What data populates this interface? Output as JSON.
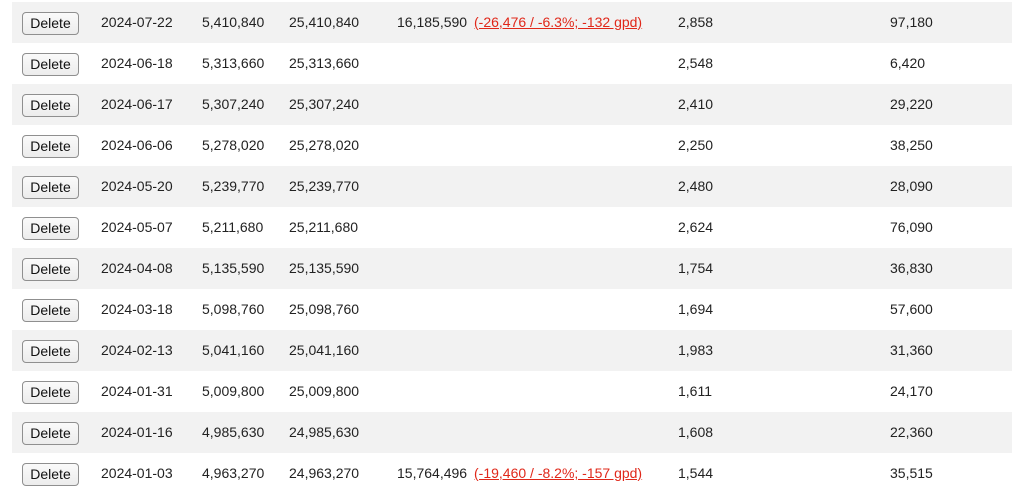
{
  "table": {
    "delete_label": "Delete",
    "rows": [
      {
        "date": "2024-07-22",
        "v1": "5,410,840",
        "v2": "25,410,840",
        "v3": "16,185,590",
        "delta": "(-26,476 / -6.3%; -132 gpd)",
        "v4": "2,858",
        "v5": "97,180"
      },
      {
        "date": "2024-06-18",
        "v1": "5,313,660",
        "v2": "25,313,660",
        "v3": "",
        "delta": "",
        "v4": "2,548",
        "v5": "6,420"
      },
      {
        "date": "2024-06-17",
        "v1": "5,307,240",
        "v2": "25,307,240",
        "v3": "",
        "delta": "",
        "v4": "2,410",
        "v5": "29,220"
      },
      {
        "date": "2024-06-06",
        "v1": "5,278,020",
        "v2": "25,278,020",
        "v3": "",
        "delta": "",
        "v4": "2,250",
        "v5": "38,250"
      },
      {
        "date": "2024-05-20",
        "v1": "5,239,770",
        "v2": "25,239,770",
        "v3": "",
        "delta": "",
        "v4": "2,480",
        "v5": "28,090"
      },
      {
        "date": "2024-05-07",
        "v1": "5,211,680",
        "v2": "25,211,680",
        "v3": "",
        "delta": "",
        "v4": "2,624",
        "v5": "76,090"
      },
      {
        "date": "2024-04-08",
        "v1": "5,135,590",
        "v2": "25,135,590",
        "v3": "",
        "delta": "",
        "v4": "1,754",
        "v5": "36,830"
      },
      {
        "date": "2024-03-18",
        "v1": "5,098,760",
        "v2": "25,098,760",
        "v3": "",
        "delta": "",
        "v4": "1,694",
        "v5": "57,600"
      },
      {
        "date": "2024-02-13",
        "v1": "5,041,160",
        "v2": "25,041,160",
        "v3": "",
        "delta": "",
        "v4": "1,983",
        "v5": "31,360"
      },
      {
        "date": "2024-01-31",
        "v1": "5,009,800",
        "v2": "25,009,800",
        "v3": "",
        "delta": "",
        "v4": "1,611",
        "v5": "24,170"
      },
      {
        "date": "2024-01-16",
        "v1": "4,985,630",
        "v2": "24,985,630",
        "v3": "",
        "delta": "",
        "v4": "1,608",
        "v5": "22,360"
      },
      {
        "date": "2024-01-03",
        "v1": "4,963,270",
        "v2": "24,963,270",
        "v3": "15,764,496",
        "delta": "(-19,460 / -8.2%; -157 gpd)",
        "v4": "1,544",
        "v5": "35,515"
      }
    ]
  }
}
